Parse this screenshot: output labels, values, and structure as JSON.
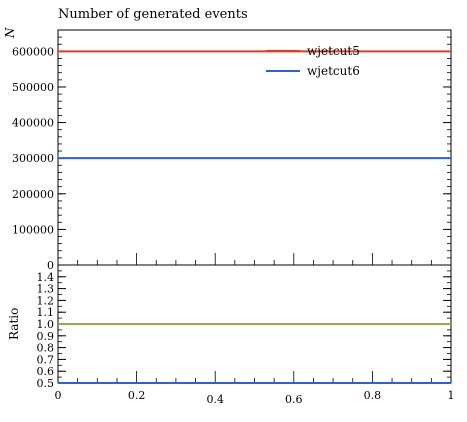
{
  "chart_data": [
    {
      "type": "line",
      "title": "Number of generated events",
      "ylabel": "N",
      "xlim": [
        0,
        1
      ],
      "ylim": [
        0,
        660000
      ],
      "yticks": [
        0,
        100000,
        200000,
        300000,
        400000,
        500000,
        600000
      ],
      "ytick_labels": [
        "0",
        "100000",
        "200000",
        "300000",
        "400000",
        "500000",
        "600000"
      ],
      "legend_position": "top-right",
      "series": [
        {
          "name": "wjetcut5",
          "color": "#e8391e",
          "x": [
            0,
            1
          ],
          "values": [
            600000,
            600000
          ]
        },
        {
          "name": "wjetcut6",
          "color": "#2a5ee8",
          "x": [
            0,
            1
          ],
          "values": [
            300000,
            300000
          ]
        }
      ]
    },
    {
      "type": "line",
      "ylabel": "Ratio",
      "xlim": [
        0,
        1
      ],
      "ylim": [
        0.5,
        1.5
      ],
      "yticks": [
        0.5,
        0.6,
        0.7,
        0.8,
        0.9,
        1.0,
        1.1,
        1.2,
        1.3,
        1.4
      ],
      "ytick_labels": [
        "0.5",
        "0.6",
        "0.7",
        "0.8",
        "0.9",
        "1.0",
        "1.1",
        "1.2",
        "1.3",
        "1.4"
      ],
      "xticks": [
        0,
        0.2,
        0.4,
        0.6,
        0.8,
        1
      ],
      "xtick_labels": [
        "0",
        "0.2",
        "0.4",
        "0.6",
        "0.8",
        "1"
      ],
      "series": [
        {
          "color": "#a9a23a",
          "x": [
            0,
            1
          ],
          "values": [
            1.0,
            1.0
          ]
        },
        {
          "color": "#2a5ee8",
          "x": [
            0,
            1
          ],
          "values": [
            0.5,
            0.5
          ]
        }
      ]
    }
  ]
}
